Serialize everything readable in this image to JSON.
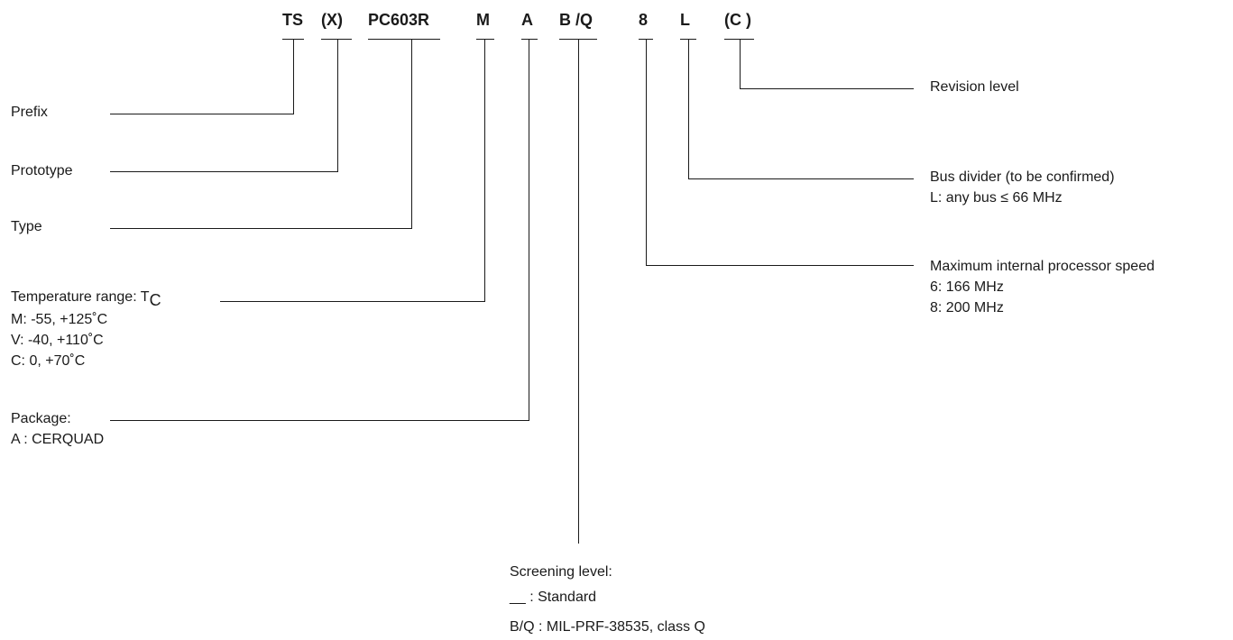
{
  "codes": {
    "ts": "TS",
    "x": "(X)",
    "pc603r": "PC603R",
    "m": "M",
    "a": "A",
    "bq": "B /Q",
    "eight": "8",
    "l": "L",
    "c": "(C )"
  },
  "left_labels": {
    "prefix": "Prefix",
    "prototype": "Prototype",
    "type": "Type",
    "temperature": {
      "title": "Temperature range: T",
      "title_sub": "C",
      "lines": [
        "M: -55, +125˚C",
        "V: -40, +110˚C",
        "C: 0, +70˚C"
      ]
    },
    "package": {
      "title": "Package:",
      "lines": [
        "A : CERQUAD"
      ]
    }
  },
  "right_labels": {
    "revision": "Revision level",
    "bus": {
      "title": "Bus divider (to be confirmed)",
      "lines": [
        "L: any bus ≤ 66  MHz"
      ]
    },
    "speed": {
      "title": "Maximum internal processor speed",
      "lines": [
        "6: 166 MHz",
        "8: 200 MHz"
      ]
    }
  },
  "bottom_labels": {
    "screening": {
      "title": "Screening level:",
      "lines": [
        "__ : Standard",
        "B/Q : MIL-PRF-38535, class Q"
      ]
    }
  }
}
